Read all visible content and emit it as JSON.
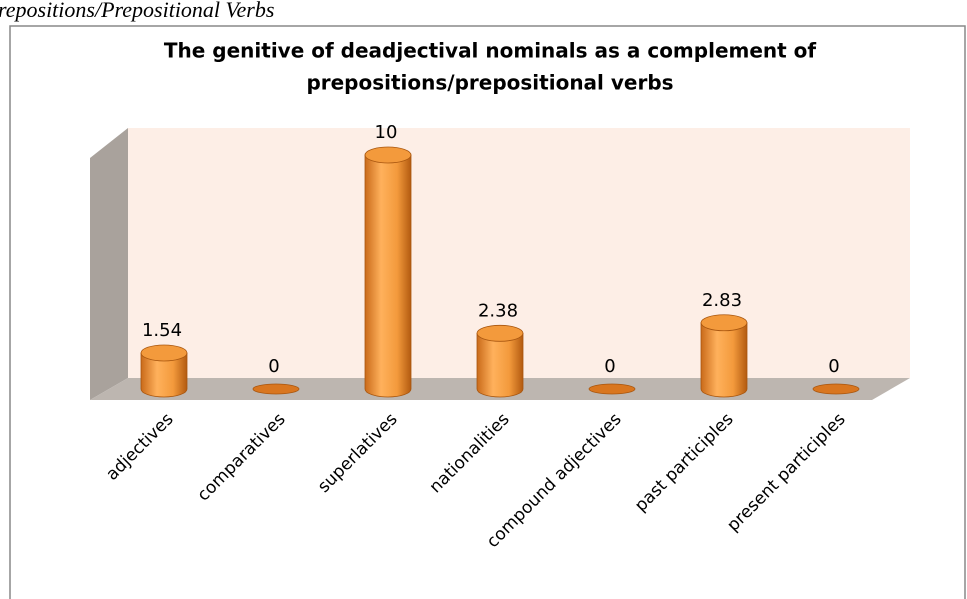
{
  "caption": "repositions/Prepositional Verbs",
  "chart_data": {
    "type": "bar3d",
    "title": [
      "The genitive of deadjectival nominals as a complement of",
      "prepositions/prepositional verbs"
    ],
    "categories": [
      "adjectives",
      "comparatives",
      "superlatives",
      "nationalities",
      "compound adjectives",
      "past participles",
      "present participles"
    ],
    "values": [
      1.54,
      0,
      10,
      2.38,
      0,
      2.83,
      0
    ],
    "color": "#f39a3c"
  }
}
